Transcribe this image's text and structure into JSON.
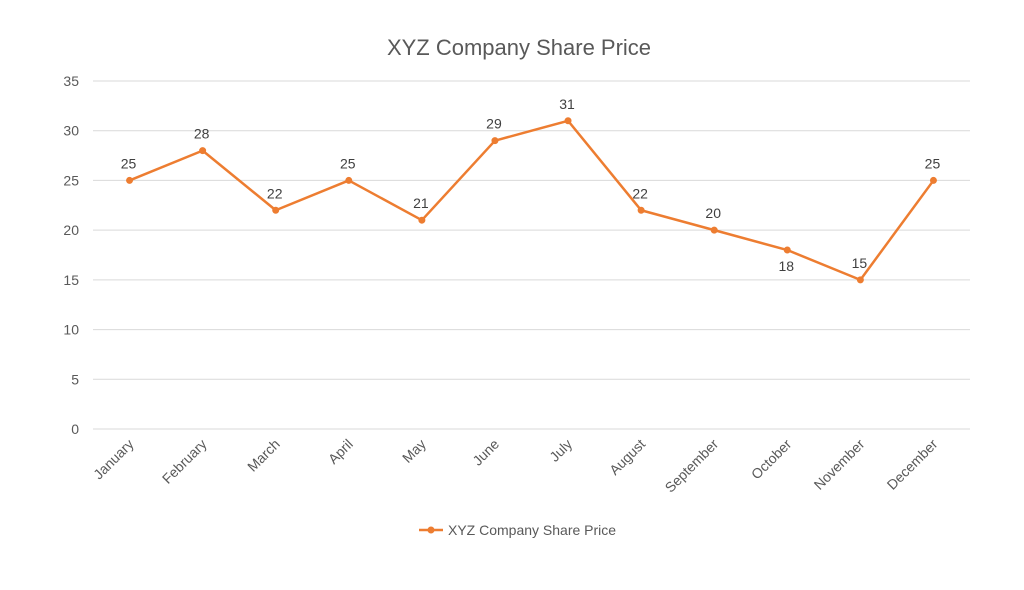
{
  "chart_data": {
    "type": "line",
    "title": "XYZ Company Share Price",
    "xlabel": "",
    "ylabel": "",
    "categories": [
      "January",
      "February",
      "March",
      "April",
      "May",
      "June",
      "July",
      "August",
      "September",
      "October",
      "November",
      "December"
    ],
    "series": [
      {
        "name": "XYZ Company Share Price",
        "values": [
          25,
          28,
          22,
          25,
          21,
          29,
          31,
          22,
          20,
          18,
          15,
          25
        ]
      }
    ],
    "ylim": [
      0,
      35
    ],
    "yticks": [
      0,
      5,
      10,
      15,
      20,
      25,
      30,
      35
    ],
    "grid": true,
    "legend_position": "bottom",
    "data_labels": true,
    "colors": {
      "series": "#ED7D31",
      "grid": "#D9D9D9",
      "text": "#595959"
    }
  }
}
